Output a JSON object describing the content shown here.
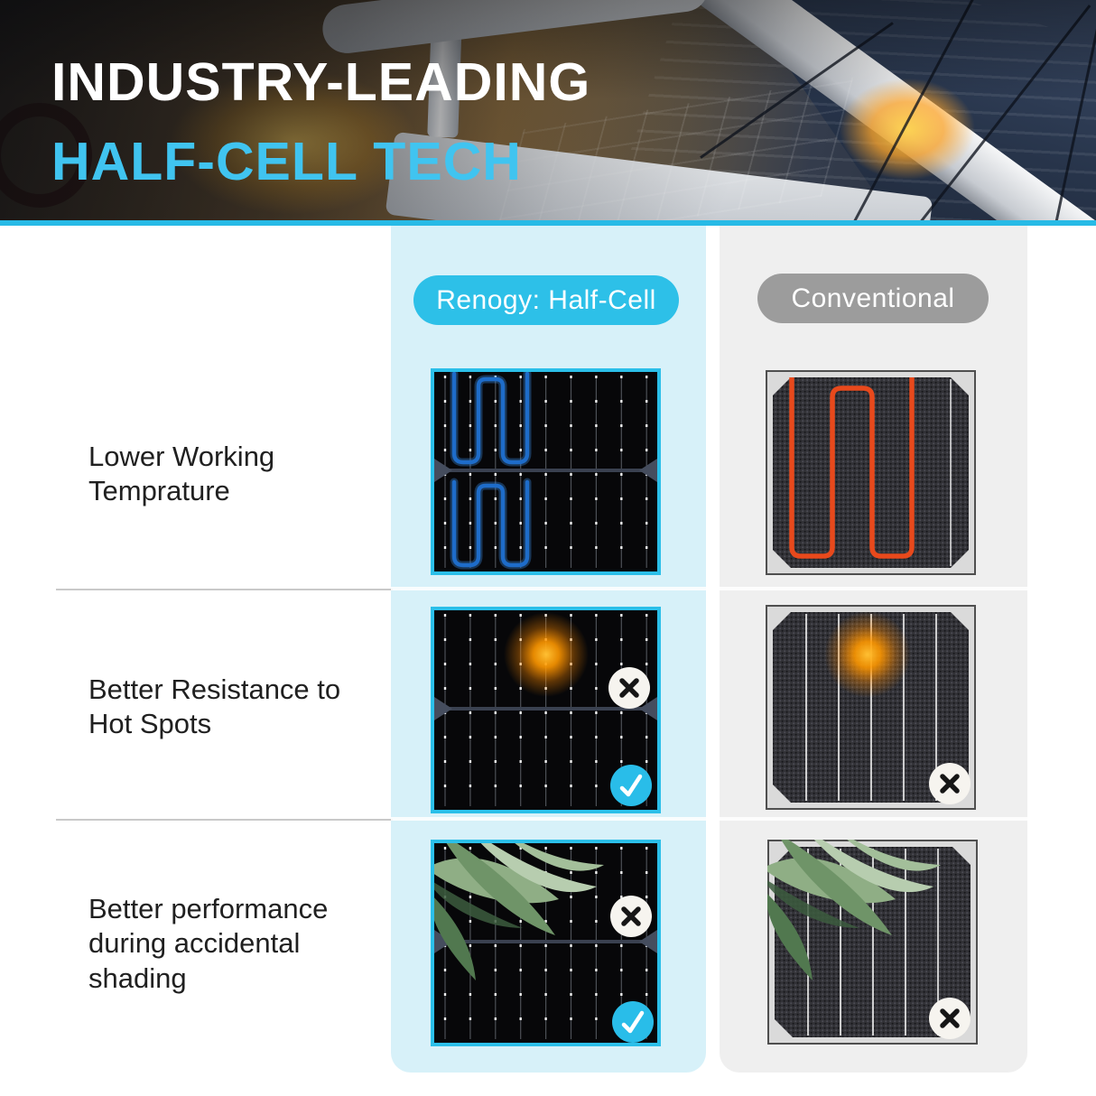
{
  "header": {
    "title_line1": "INDUSTRY-LEADING",
    "title_line2": "HALF-CELL TECH"
  },
  "columns": {
    "renogy": {
      "label": "Renogy: Half-Cell"
    },
    "conventional": {
      "label": "Conventional"
    }
  },
  "rows": [
    {
      "label": "Lower Working Temprature",
      "renogy_panel": "half-cell panel with blue serpentine circuit highlight",
      "conventional_panel": "full cell with red serpentine circuit highlight"
    },
    {
      "label": "Better Resistance to Hot Spots",
      "renogy_panel": "half-cell panel with hot spot, fail mark upper half, pass mark lower half",
      "conventional_panel": "full cell with hot spot and fail mark"
    },
    {
      "label": "Better performance during accidental shading",
      "renogy_panel": "half-cell panel shaded by leaf, fail mark upper half, pass mark lower half",
      "conventional_panel": "full cell shaded by leaf with fail mark"
    }
  ],
  "icons": {
    "fail_icon": "✕",
    "pass_icon": "✓"
  },
  "colors": {
    "accent_cyan": "#27BAE6",
    "title_cyan": "#40C4F0",
    "renogy_column_bg": "#D7F1F9",
    "conventional_column_bg": "#EFEFEF",
    "renogy_pill": "#2DC0E8",
    "conventional_pill": "#9C9C9C",
    "serpentine_blue": "#1E6CC9",
    "serpentine_red": "#E8491C",
    "hotspot_orange": "#FF9800"
  }
}
